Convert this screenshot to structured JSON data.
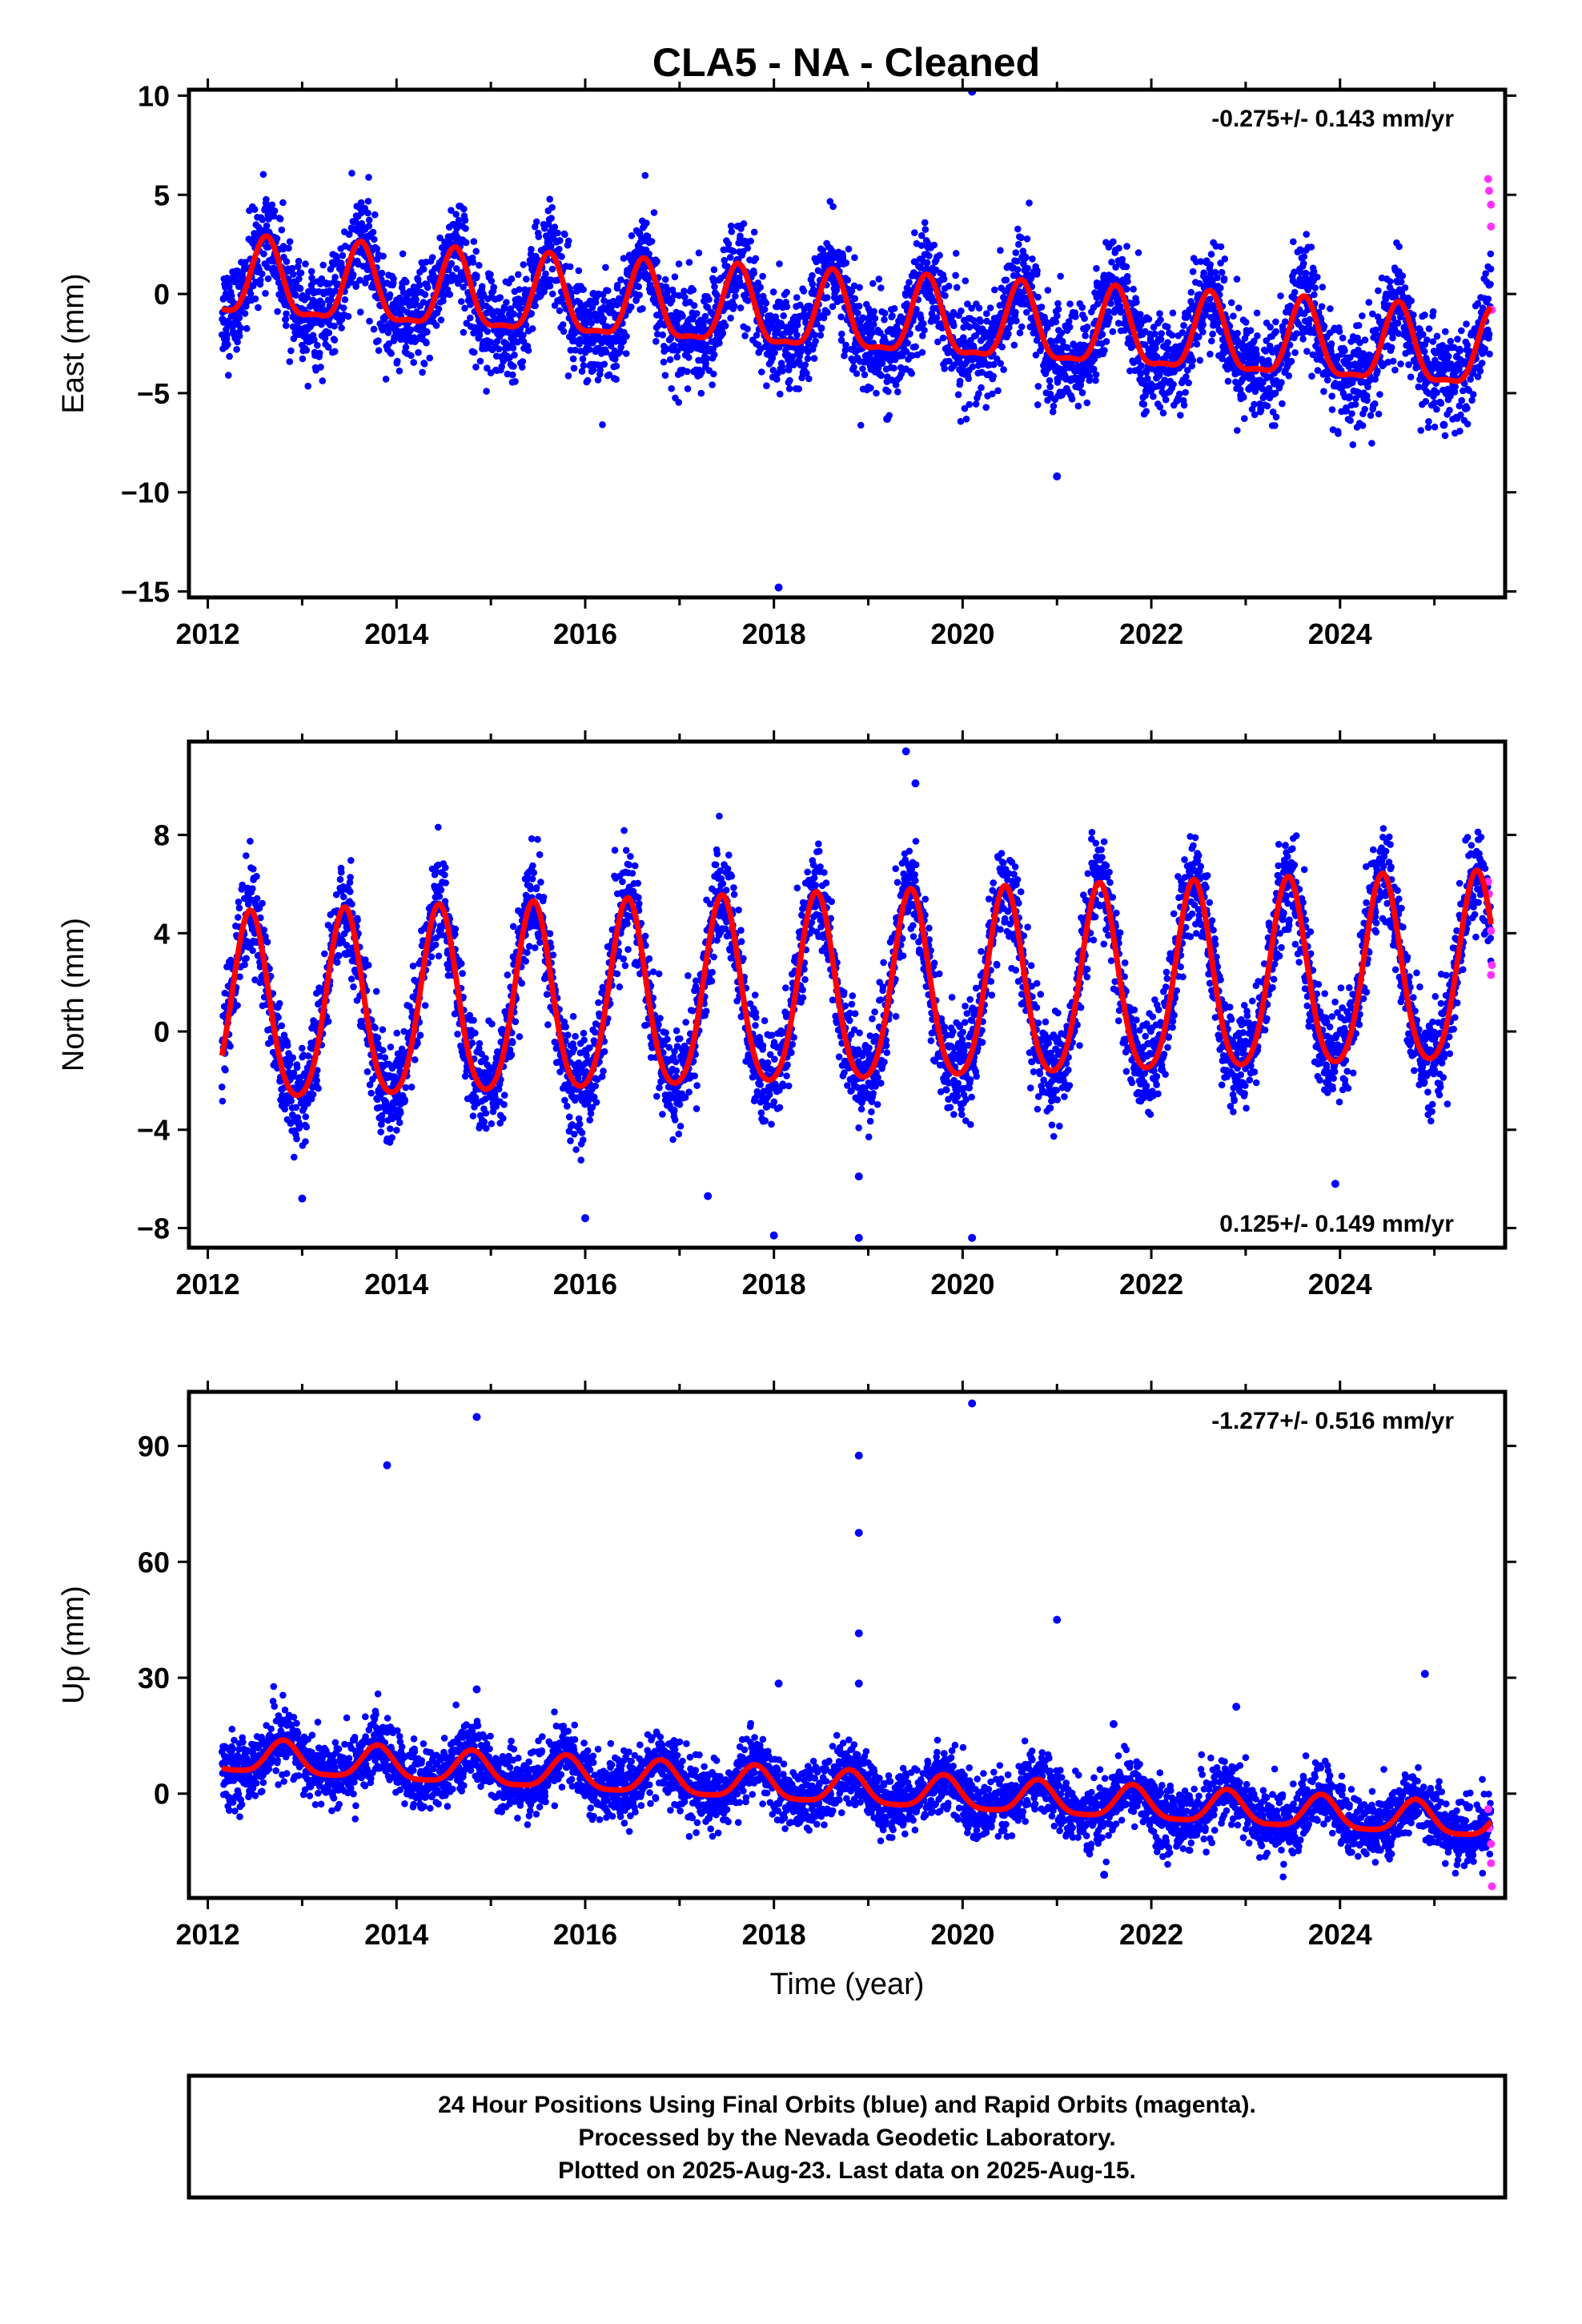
{
  "title": "CLA5  - NA - Cleaned",
  "colors": {
    "final": "#0000ff",
    "rapid": "#ff33ff",
    "model": "#ff0000",
    "frame": "#000000"
  },
  "caption": [
    "24 Hour Positions Using Final Orbits (blue) and Rapid Orbits (magenta).",
    "Processed by the Nevada Geodetic Laboratory.",
    "Plotted on 2025-Aug-23. Last data on 2025-Aug-15."
  ],
  "chart_data": [
    {
      "type": "scatter",
      "id": "east",
      "ylabel": "East (mm)",
      "xlabel": "",
      "rate": "-0.275+/- 0.143 mm/yr",
      "rate_position": "top-right",
      "xlim": [
        2011.8,
        2025.75
      ],
      "ylim": [
        -15.3,
        10.3
      ],
      "xticks": [
        "2012",
        "2014",
        "2016",
        "2018",
        "2020",
        "2022",
        "2024"
      ],
      "yticks": [
        "10",
        "5",
        "0",
        "−5",
        "−10",
        "−15"
      ],
      "ytick_values": [
        10,
        5,
        0,
        -5,
        -10,
        -15
      ],
      "model": {
        "start": 2012.15,
        "end": 2025.6,
        "offset": 0.55,
        "trend": -0.275,
        "amp": 1.9,
        "amp2": 0.6,
        "phase": 0.62
      },
      "scatter_sigma": 1.25,
      "outliers": [
        [
          2020.1,
          10.2
        ],
        [
          2018.05,
          -14.8
        ],
        [
          2021.0,
          -9.2
        ],
        [
          2019.2,
          -6.3
        ],
        [
          2025.1,
          -6.6
        ],
        [
          2012.3,
          -1.2
        ]
      ],
      "rapid": [
        [
          2025.57,
          5.8
        ],
        [
          2025.58,
          5.2
        ],
        [
          2025.6,
          4.5
        ],
        [
          2025.6,
          3.4
        ],
        [
          2025.61,
          -0.8
        ]
      ]
    },
    {
      "type": "scatter",
      "id": "north",
      "ylabel": "North (mm)",
      "xlabel": "",
      "rate": "0.125+/- 0.149 mm/yr",
      "rate_position": "bottom-right",
      "xlim": [
        2011.8,
        2025.75
      ],
      "ylim": [
        -8.8,
        11.8
      ],
      "xticks": [
        "2012",
        "2014",
        "2016",
        "2018",
        "2020",
        "2022",
        "2024"
      ],
      "yticks": [
        "8",
        "4",
        "0",
        "−4",
        "−8"
      ],
      "ytick_values": [
        8,
        4,
        0,
        -4,
        -8
      ],
      "model": {
        "start": 2012.15,
        "end": 2025.6,
        "offset": 0.6,
        "trend": 0.125,
        "amp": 3.8,
        "amp2": 0.5,
        "phase": 0.45
      },
      "scatter_sigma": 1.0,
      "outliers": [
        [
          2019.4,
          11.4
        ],
        [
          2019.5,
          10.1
        ],
        [
          2018.0,
          -8.3
        ],
        [
          2018.9,
          -8.4
        ],
        [
          2020.1,
          -8.4
        ],
        [
          2016.0,
          -7.6
        ],
        [
          2013.0,
          -6.8
        ],
        [
          2017.3,
          -6.7
        ],
        [
          2018.9,
          -5.9
        ],
        [
          2023.95,
          -6.2
        ]
      ],
      "rapid": [
        [
          2025.57,
          6.1
        ],
        [
          2025.58,
          5.6
        ],
        [
          2025.6,
          4.1
        ],
        [
          2025.61,
          2.7
        ],
        [
          2025.6,
          2.3
        ]
      ]
    },
    {
      "type": "scatter",
      "id": "up",
      "ylabel": "Up (mm)",
      "xlabel": "Time (year)",
      "rate": "-1.277+/- 0.516 mm/yr",
      "rate_position": "top-right",
      "xlim": [
        2011.8,
        2025.75
      ],
      "ylim": [
        -27,
        104
      ],
      "xticks": [
        "2012",
        "2014",
        "2016",
        "2018",
        "2020",
        "2022",
        "2024"
      ],
      "yticks": [
        "90",
        "60",
        "30",
        "0"
      ],
      "ytick_values": [
        90,
        60,
        30,
        0
      ],
      "model": {
        "start": 2012.15,
        "end": 2025.6,
        "offset": 9.5,
        "trend": -1.277,
        "amp": 4.2,
        "amp2": 1.0,
        "phase": 0.8
      },
      "scatter_sigma": 4.0,
      "outliers": [
        [
          2013.9,
          85
        ],
        [
          2014.85,
          97.5
        ],
        [
          2018.9,
          87.5
        ],
        [
          2018.9,
          67.5
        ],
        [
          2018.9,
          41.5
        ],
        [
          2018.9,
          28.5
        ],
        [
          2018.05,
          28.5
        ],
        [
          2020.1,
          101
        ],
        [
          2021.0,
          45
        ],
        [
          2024.9,
          31
        ],
        [
          2022.9,
          22.5
        ],
        [
          2014.85,
          27
        ],
        [
          2021.6,
          18
        ],
        [
          2021.5,
          -21
        ]
      ],
      "rapid": [
        [
          2025.57,
          -4
        ],
        [
          2025.58,
          -9
        ],
        [
          2025.6,
          -13
        ],
        [
          2025.6,
          -18
        ],
        [
          2025.61,
          -24
        ]
      ]
    }
  ]
}
